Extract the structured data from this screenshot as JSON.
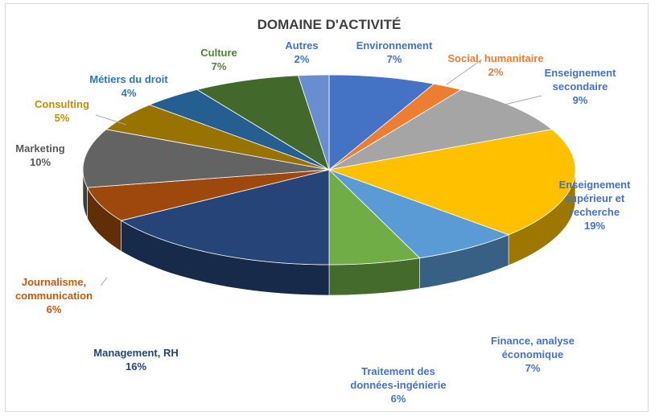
{
  "chart_data": {
    "type": "pie",
    "style": "3d",
    "title": "DOMAINE D'ACTIVITÉ",
    "categories": [
      "Environnement",
      "Social, humanitaire",
      "Enseignement secondaire",
      "Enseignement supérieur et recherche",
      "Finance, analyse économique",
      "Traitement des données-ingénierie",
      "Management, RH",
      "Journalisme, communication",
      "Marketing",
      "Consulting",
      "Métiers du droit",
      "Culture",
      "Autres"
    ],
    "values": [
      7,
      2,
      9,
      19,
      7,
      6,
      16,
      6,
      10,
      5,
      4,
      7,
      2
    ],
    "value_labels": [
      "7%",
      "2%",
      "9%",
      "19%",
      "7%",
      "6%",
      "16%",
      "6%",
      "10%",
      "5%",
      "4%",
      "7%",
      "2%"
    ],
    "colors": [
      "#4472c4",
      "#ed7d31",
      "#a5a5a5",
      "#ffc000",
      "#5b9bd5",
      "#70ad47",
      "#264478",
      "#9e480e",
      "#636363",
      "#997300",
      "#255e91",
      "#43682b",
      "#698ed0"
    ],
    "label_colors": [
      "#4472c4",
      "#ed7d31",
      "#4472c4",
      "#4472c4",
      "#4472c4",
      "#4472c4",
      "#264478",
      "#c55a11",
      "#595959",
      "#bf9000",
      "#2e75b6",
      "#548235",
      "#4472c4"
    ],
    "legend": "none"
  }
}
